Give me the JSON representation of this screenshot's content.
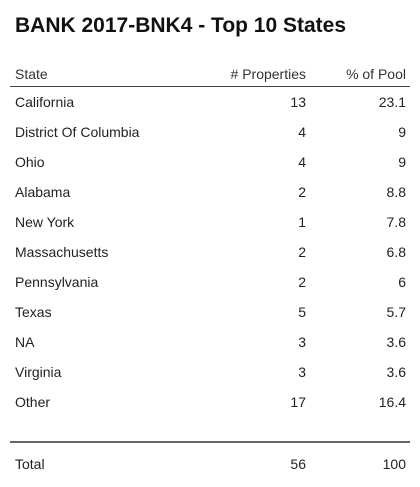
{
  "title": "BANK 2017-BNK4 - Top 10 States",
  "chart_data": {
    "type": "table",
    "columns": [
      "State",
      "# Properties",
      "% of Pool"
    ],
    "rows": [
      {
        "state": "California",
        "properties": "13",
        "pool": "23.1"
      },
      {
        "state": "District Of Columbia",
        "properties": "4",
        "pool": "9"
      },
      {
        "state": "Ohio",
        "properties": "4",
        "pool": "9"
      },
      {
        "state": "Alabama",
        "properties": "2",
        "pool": "8.8"
      },
      {
        "state": "New York",
        "properties": "1",
        "pool": "7.8"
      },
      {
        "state": "Massachusetts",
        "properties": "2",
        "pool": "6.8"
      },
      {
        "state": "Pennsylvania",
        "properties": "2",
        "pool": "6"
      },
      {
        "state": "Texas",
        "properties": "5",
        "pool": "5.7"
      },
      {
        "state": "NA",
        "properties": "3",
        "pool": "3.6"
      },
      {
        "state": "Virginia",
        "properties": "3",
        "pool": "3.6"
      },
      {
        "state": "Other",
        "properties": "17",
        "pool": "16.4"
      }
    ],
    "total": {
      "label": "Total",
      "properties": "56",
      "pool": "100"
    }
  }
}
